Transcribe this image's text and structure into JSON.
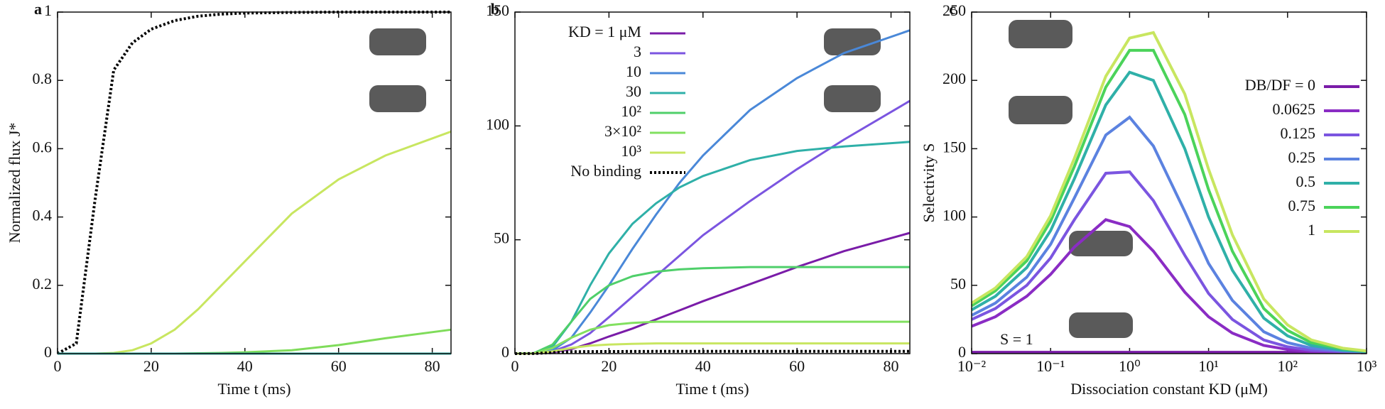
{
  "chart_data": [
    {
      "type": "line",
      "panel": "a",
      "xlabel": "Time t (ms)",
      "ylabel": "Normalized flux J*",
      "x": [
        0,
        4,
        8,
        12,
        16,
        20,
        25,
        30,
        35,
        40,
        50,
        60,
        70,
        84
      ],
      "xlim": [
        0,
        84
      ],
      "xticks": [
        0,
        20,
        40,
        60,
        80
      ],
      "ylim": [
        0,
        1
      ],
      "yticks": [
        0,
        0.2,
        0.4,
        0.6,
        0.8,
        1
      ],
      "series": [
        {
          "color": "#000000",
          "style": "dotted",
          "values": [
            0,
            0.03,
            0.45,
            0.83,
            0.91,
            0.95,
            0.975,
            0.988,
            0.994,
            0.997,
            0.999,
            1,
            1,
            1
          ]
        },
        {
          "color": "#c8e660",
          "values": [
            0,
            0,
            0,
            0.002,
            0.01,
            0.03,
            0.07,
            0.13,
            0.2,
            0.27,
            0.41,
            0.51,
            0.58,
            0.65
          ]
        },
        {
          "color": "#7fdc5a",
          "values": [
            0,
            0,
            0,
            0,
            0,
            0,
            0,
            0.001,
            0.002,
            0.004,
            0.01,
            0.025,
            0.045,
            0.07
          ]
        },
        {
          "color": "#2fb0a8",
          "values": [
            0,
            0,
            0,
            0,
            0,
            0,
            0,
            0,
            0,
            0,
            0,
            0,
            0,
            0
          ]
        }
      ]
    },
    {
      "type": "line",
      "panel": "b",
      "xlabel": "Time t (ms)",
      "legend": "upper left",
      "x": [
        0,
        4,
        8,
        12,
        16,
        20,
        25,
        30,
        35,
        40,
        50,
        60,
        70,
        84
      ],
      "xlim": [
        0,
        84
      ],
      "xticks": [
        0,
        20,
        40,
        60,
        80
      ],
      "ylim": [
        0,
        150
      ],
      "yticks": [
        0,
        50,
        100,
        150
      ],
      "series": [
        {
          "name": "KD = 1 μM",
          "color": "#7a1ca8",
          "values": [
            0,
            0,
            0.5,
            2,
            4.5,
            7.5,
            11,
            15,
            19,
            23,
            30.5,
            38,
            45,
            53
          ]
        },
        {
          "name": "3",
          "color": "#7b55e0",
          "values": [
            0,
            0,
            1,
            4,
            9,
            16,
            25,
            34,
            43,
            52,
            67,
            81,
            94,
            111
          ]
        },
        {
          "name": "10",
          "color": "#4a88d8",
          "values": [
            0,
            0,
            1.5,
            7,
            18,
            30,
            46,
            61,
            75,
            87,
            107,
            121,
            132,
            142
          ]
        },
        {
          "name": "30",
          "color": "#2fb0a8",
          "values": [
            0,
            0.2,
            3,
            14,
            30,
            44,
            57,
            66,
            73,
            78,
            85,
            89,
            91,
            93
          ]
        },
        {
          "name": "10²",
          "color": "#4fcf6a",
          "values": [
            0,
            0.2,
            4,
            14,
            24,
            30,
            34,
            36,
            37,
            37.5,
            38,
            38,
            38,
            38
          ]
        },
        {
          "name": "3×10²",
          "color": "#82e060",
          "values": [
            0,
            0.1,
            2.5,
            7,
            10.5,
            12.5,
            13.5,
            14,
            14,
            14,
            14,
            14,
            14,
            14
          ]
        },
        {
          "name": "10³",
          "color": "#c8e660",
          "values": [
            0,
            0,
            1,
            2.5,
            3.5,
            4,
            4.3,
            4.5,
            4.5,
            4.5,
            4.5,
            4.5,
            4.5,
            4.5
          ]
        },
        {
          "name": "No binding",
          "color": "#000000",
          "style": "dotted",
          "values": [
            0,
            0.03,
            0.45,
            0.83,
            0.91,
            0.95,
            0.975,
            0.988,
            0.994,
            0.997,
            0.999,
            1,
            1,
            1
          ]
        }
      ]
    },
    {
      "type": "line",
      "panel": "c",
      "xlabel": "Dissociation constant KD (μM)",
      "ylabel": "Selectivity S",
      "legend": "upper right",
      "xscale": "log",
      "annotations": [
        "S = 1"
      ],
      "x": [
        0.01,
        0.02,
        0.05,
        0.1,
        0.2,
        0.5,
        1,
        2,
        5,
        10,
        20,
        50,
        100,
        200,
        500,
        1000
      ],
      "xlim": [
        0.01,
        1000
      ],
      "xticks": [
        {
          "value": 0.01,
          "label": "10⁻²"
        },
        {
          "value": 0.1,
          "label": "10⁻¹"
        },
        {
          "value": 1,
          "label": "10⁰"
        },
        {
          "value": 10,
          "label": "10¹"
        },
        {
          "value": 100,
          "label": "10²"
        },
        {
          "value": 1000,
          "label": "10³"
        }
      ],
      "ylim": [
        0,
        250
      ],
      "yticks": [
        0,
        50,
        100,
        150,
        200,
        250
      ],
      "series": [
        {
          "name": "DB/DF = 0",
          "color": "#7a1ca8",
          "values": [
            1,
            1,
            1,
            1,
            1,
            1,
            1,
            1,
            1,
            1,
            1,
            1,
            1,
            1,
            1,
            1
          ]
        },
        {
          "name": "0.0625",
          "color": "#8a2cc4",
          "values": [
            20,
            27,
            42,
            58,
            78,
            98,
            93,
            75,
            45,
            27,
            15,
            6,
            3,
            1.5,
            1,
            1
          ]
        },
        {
          "name": "0.125",
          "color": "#7b55e0",
          "values": [
            25,
            33,
            50,
            70,
            98,
            132,
            133,
            112,
            72,
            44,
            25,
            10,
            5,
            2.5,
            1.5,
            1
          ]
        },
        {
          "name": "0.25",
          "color": "#5b82e0",
          "values": [
            28,
            37,
            56,
            80,
            114,
            160,
            173,
            152,
            104,
            66,
            39,
            16,
            8,
            4,
            2,
            1.2
          ]
        },
        {
          "name": "0.5",
          "color": "#2fb0a8",
          "values": [
            32,
            42,
            63,
            90,
            128,
            182,
            206,
            200,
            150,
            100,
            61,
            26,
            13,
            6,
            2.5,
            1.5
          ]
        },
        {
          "name": "0.75",
          "color": "#4bd35a",
          "values": [
            35,
            46,
            68,
            97,
            137,
            195,
            222,
            222,
            175,
            120,
            75,
            33,
            17,
            8,
            3.5,
            1.8
          ]
        },
        {
          "name": "1",
          "color": "#c8e660",
          "values": [
            37,
            48,
            71,
            101,
            143,
            203,
            231,
            235,
            190,
            135,
            87,
            40,
            21,
            10,
            4,
            2
          ]
        }
      ]
    }
  ]
}
